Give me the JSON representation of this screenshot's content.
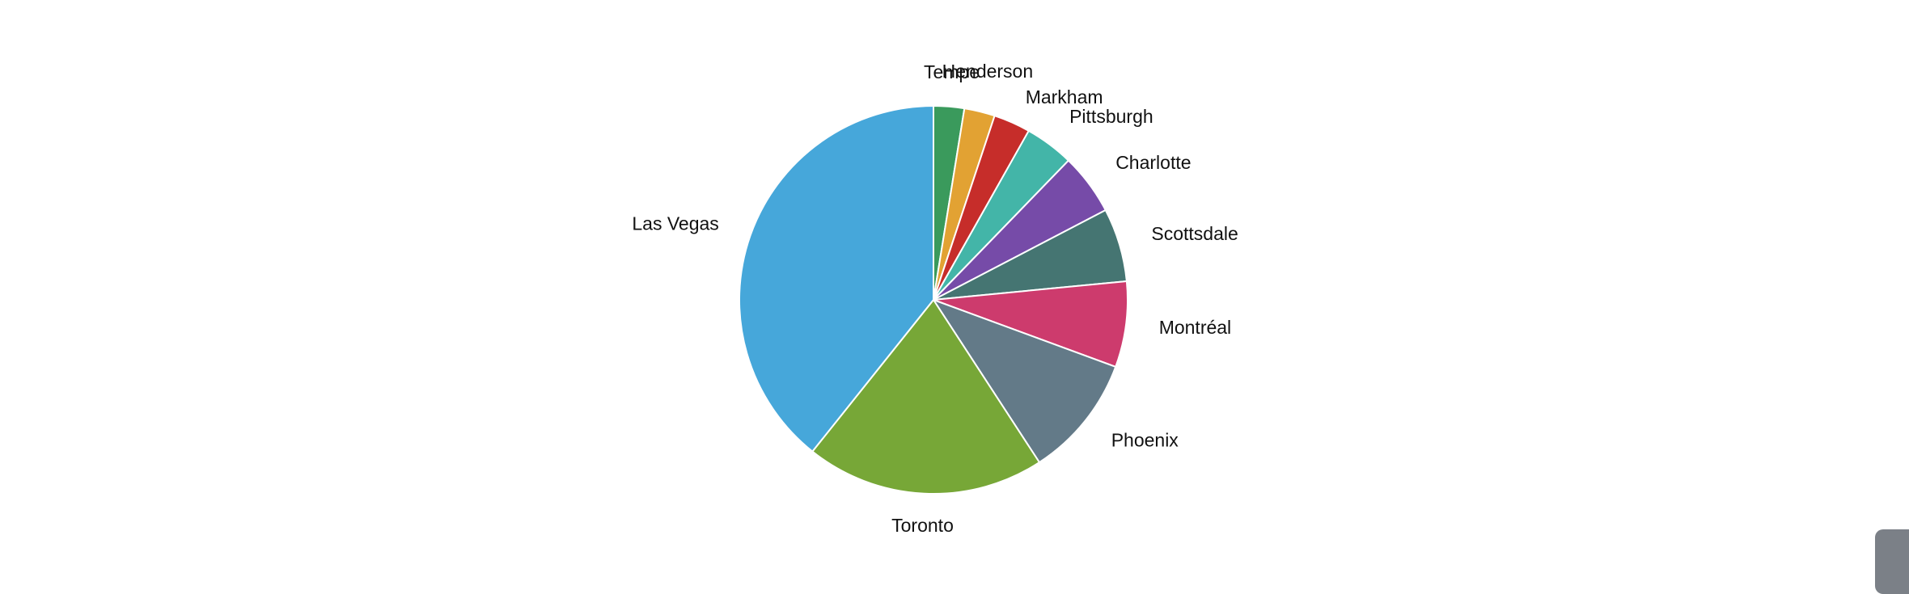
{
  "chart_data": {
    "type": "pie",
    "title": "",
    "start": "top",
    "direction": "clockwise",
    "slices": [
      {
        "label": "Tempe",
        "value": 2.5,
        "color": "#3a9a5c"
      },
      {
        "label": "Henderson",
        "value": 2.5,
        "color": "#e2a233"
      },
      {
        "label": "Markham",
        "value": 3.0,
        "color": "#c62d2a"
      },
      {
        "label": "Pittsburgh",
        "value": 4.0,
        "color": "#43b5a8"
      },
      {
        "label": "Charlotte",
        "value": 5.0,
        "color": "#764ba8"
      },
      {
        "label": "Scottsdale",
        "value": 6.0,
        "color": "#457572"
      },
      {
        "label": "Montréal",
        "value": 7.0,
        "color": "#cd3b6d"
      },
      {
        "label": "Phoenix",
        "value": 10.0,
        "color": "#637a88"
      },
      {
        "label": "Toronto",
        "value": 19.5,
        "color": "#77a737"
      },
      {
        "label": "Las Vegas",
        "value": 38.5,
        "color": "#46a7da"
      }
    ]
  }
}
